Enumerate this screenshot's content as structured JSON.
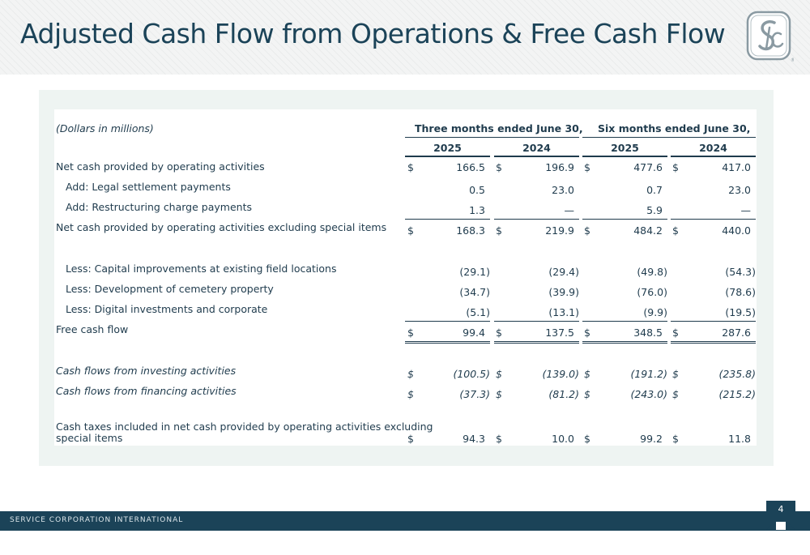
{
  "header": {
    "title": "Adjusted Cash Flow from Operations & Free Cash Flow",
    "logo_icon": "sci-monogram-logo",
    "logo_text": "SCI"
  },
  "table": {
    "units_label": "(Dollars in millions)",
    "group_headers": [
      "Three months ended June 30,",
      "Six months ended June 30,"
    ],
    "year_headers": [
      "2025",
      "2024",
      "2025",
      "2024"
    ],
    "currency_symbol": "$",
    "rows": [
      {
        "label": "Net cash provided by operating activities",
        "values": [
          "166.5",
          "196.9",
          "477.6",
          "417.0"
        ]
      },
      {
        "label": "Add: Legal settlement payments",
        "values": [
          "0.5",
          "23.0",
          "0.7",
          "23.0"
        ]
      },
      {
        "label": "Add: Restructuring charge payments",
        "values": [
          "1.3",
          "—",
          "5.9",
          "—"
        ]
      },
      {
        "label": "Net cash provided by operating activities excluding special items",
        "values": [
          "168.3",
          "219.9",
          "484.2",
          "440.0"
        ]
      },
      {
        "label": "Less: Capital improvements at existing field locations",
        "values": [
          "(29.1)",
          "(29.4)",
          "(49.8)",
          "(54.3)"
        ]
      },
      {
        "label": "Less: Development of cemetery property",
        "values": [
          "(34.7)",
          "(39.9)",
          "(76.0)",
          "(78.6)"
        ]
      },
      {
        "label": "Less: Digital investments and corporate",
        "values": [
          "(5.1)",
          "(13.1)",
          "(9.9)",
          "(19.5)"
        ]
      },
      {
        "label": "Free cash flow",
        "values": [
          "99.4",
          "137.5",
          "348.5",
          "287.6"
        ]
      },
      {
        "label": "Cash flows from investing activities",
        "values": [
          "(100.5)",
          "(139.0)",
          "(191.2)",
          "(235.8)"
        ]
      },
      {
        "label": "Cash flows from financing activities",
        "values": [
          "(37.3)",
          "(81.2)",
          "(243.0)",
          "(215.2)"
        ]
      },
      {
        "label_line1": "Cash taxes included in net cash provided by operating activities excluding",
        "label_line2": "special items",
        "values": [
          "94.3",
          "10.0",
          "99.2",
          "11.8"
        ]
      }
    ]
  },
  "footer": {
    "company": "SERVICE CORPORATION INTERNATIONAL",
    "page_number": "4"
  },
  "colors": {
    "brand_navy": "#1b4358",
    "panel_bg": "#eef4f2",
    "header_bg": "#f3f4f4"
  }
}
